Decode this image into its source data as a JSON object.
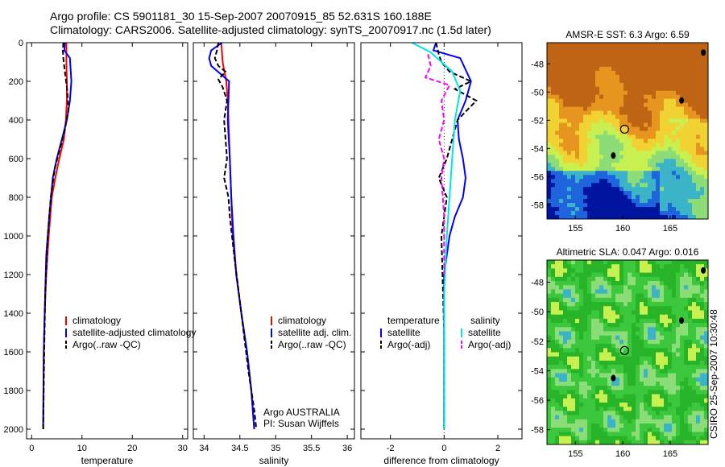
{
  "title": {
    "line1": "Argo profile: CS 5901181_30 15-Sep-2007 20070915_85 52.631S 160.188E",
    "line2": "Climatology: CARS2006. Satellite-adjusted climatology: synTS_20070917.nc (1.5d later)"
  },
  "side_label": "CSIRO 25-Sep-2007 10:30:48",
  "colors": {
    "climatology": "#ff0000",
    "satellite": "#0000ff",
    "argo": "#000000",
    "sat_salinity": "#00e5e5",
    "argo_salinity": "#ff00ff"
  },
  "chart_data": [
    {
      "type": "line",
      "id": "temperature",
      "xlabel": "temperature",
      "xlim": [
        -1,
        31
      ],
      "ylim": [
        2050,
        0
      ],
      "xticks": [
        0,
        10,
        20,
        30
      ],
      "xtick_labels": [
        "0",
        "10",
        "20",
        "30"
      ],
      "yticks": [
        0,
        200,
        400,
        600,
        800,
        1000,
        1200,
        1400,
        1600,
        1800,
        2000
      ],
      "ytick_labels": [
        "0",
        "200",
        "400",
        "600",
        "800",
        "1000",
        "1200",
        "1400",
        "1600",
        "1800",
        "2000"
      ],
      "legend": [
        "climatology",
        "satellite-adjusted climatology",
        "Argo(..raw -QC)"
      ],
      "series": [
        {
          "name": "climatology",
          "color": "#ff0000",
          "dash": "none",
          "x": [
            6.9,
            6.9,
            7.0,
            7.0,
            6.8,
            6.4,
            5.5,
            4.7,
            4.0,
            3.4,
            2.9,
            2.6,
            2.4,
            2.3
          ],
          "y": [
            0,
            100,
            200,
            300,
            400,
            500,
            600,
            700,
            800,
            1000,
            1200,
            1400,
            1600,
            2000
          ]
        },
        {
          "name": "satellite-adjusted climatology",
          "color": "#0000ff",
          "dash": "none",
          "x": [
            6.6,
            6.5,
            7.6,
            7.9,
            7.6,
            7.0,
            6.0,
            5.0,
            4.2,
            3.5,
            2.9,
            2.6,
            2.4,
            2.3
          ],
          "y": [
            0,
            40,
            80,
            200,
            300,
            400,
            500,
            600,
            700,
            900,
            1100,
            1400,
            1600,
            2000
          ]
        },
        {
          "name": "Argo(..raw -QC)",
          "color": "#000000",
          "dash": "6,3",
          "x": [
            6.3,
            6.2,
            6.3,
            6.6,
            7.1,
            7.3,
            6.6,
            5.6,
            4.6,
            3.8,
            3.2,
            2.7,
            2.5,
            2.3
          ],
          "y": [
            0,
            40,
            80,
            150,
            250,
            350,
            450,
            550,
            650,
            800,
            1000,
            1300,
            1600,
            2000
          ]
        }
      ],
      "annotations": []
    },
    {
      "type": "line",
      "id": "salinity",
      "xlabel": "salinity",
      "xlim": [
        33.85,
        36.1
      ],
      "ylim": [
        2050,
        0
      ],
      "xticks": [
        34,
        34.5,
        35,
        35.5,
        36
      ],
      "xtick_labels": [
        "34",
        "34.5",
        "35",
        "35.5",
        "36"
      ],
      "legend": [
        "climatology",
        "satellite adj. clim.",
        "Argo(..raw -QC)"
      ],
      "series": [
        {
          "name": "climatology",
          "color": "#ff0000",
          "dash": "none",
          "x": [
            34.24,
            34.26,
            34.31,
            34.33,
            34.34,
            34.36,
            34.38,
            34.4,
            34.45,
            34.52,
            34.6,
            34.66,
            34.7
          ],
          "y": [
            0,
            100,
            200,
            300,
            400,
            600,
            800,
            1000,
            1200,
            1400,
            1600,
            1800,
            2000
          ]
        },
        {
          "name": "satellite adj. clim.",
          "color": "#0000ff",
          "dash": "none",
          "x": [
            34.25,
            34.1,
            34.07,
            34.1,
            34.35,
            34.34,
            34.33,
            34.36,
            34.38,
            34.41,
            34.45,
            34.52,
            34.6,
            34.66,
            34.7
          ],
          "y": [
            0,
            40,
            80,
            120,
            200,
            300,
            400,
            600,
            800,
            1000,
            1200,
            1400,
            1600,
            1800,
            2000
          ]
        },
        {
          "name": "Argo(..raw -QC)",
          "color": "#000000",
          "dash": "6,3",
          "x": [
            34.2,
            34.18,
            34.15,
            34.2,
            34.3,
            34.2,
            34.26,
            34.32,
            34.28,
            34.3,
            34.32,
            34.28,
            34.34,
            34.36,
            34.42,
            34.52,
            34.62,
            34.7,
            34.73
          ],
          "y": [
            0,
            40,
            80,
            120,
            150,
            190,
            230,
            300,
            400,
            500,
            600,
            700,
            800,
            900,
            1100,
            1400,
            1700,
            1900,
            2000
          ]
        }
      ],
      "annotations": [
        "Argo AUSTRALIA",
        "PI: Susan Wijffels"
      ]
    },
    {
      "type": "line",
      "id": "difference",
      "xlabel": "difference from climatology",
      "xlim": [
        -3.1,
        2.9
      ],
      "ylim": [
        2050,
        0
      ],
      "xticks": [
        -2,
        0,
        2
      ],
      "xtick_labels": [
        "-2",
        "0",
        "2"
      ],
      "legend_groups": [
        "temperature",
        "salinity"
      ],
      "legend": [
        "satellite",
        "Argo(-adj)",
        "satellite",
        "Argo(-adj)"
      ],
      "series": [
        {
          "name": "satellite",
          "group": "temperature",
          "color": "#0000ff",
          "dash": "none",
          "x": [
            -0.3,
            -0.4,
            0.6,
            1.0,
            0.8,
            0.5,
            0.55,
            0.7,
            0.8,
            0.7,
            0.4,
            0.2,
            0.0,
            0.0,
            0.0
          ],
          "y": [
            0,
            40,
            80,
            200,
            300,
            400,
            500,
            600,
            700,
            800,
            900,
            1000,
            1200,
            1600,
            2000
          ]
        },
        {
          "name": "Argo(-adj)",
          "group": "temperature",
          "color": "#000000",
          "dash": "6,3",
          "x": [
            -0.3,
            -0.2,
            -0.1,
            0.2,
            1.0,
            0.4,
            1.2,
            0.5,
            0.3,
            0.1,
            -0.2,
            0.1,
            -0.1,
            0.0,
            0.0
          ],
          "y": [
            0,
            60,
            100,
            150,
            200,
            240,
            300,
            400,
            500,
            600,
            700,
            800,
            1000,
            1500,
            2000
          ]
        },
        {
          "name": "satellite",
          "group": "salinity",
          "color": "#00e5e5",
          "dash": "none",
          "x": [
            -1.2,
            -0.5,
            0.3,
            0.6,
            0.4,
            0.3,
            0.2,
            0.1,
            0.0,
            0.0
          ],
          "y": [
            0,
            50,
            150,
            250,
            400,
            600,
            800,
            1000,
            1300,
            2000
          ]
        },
        {
          "name": "Argo(-adj)",
          "group": "salinity",
          "color": "#ff00ff",
          "dash": "6,3",
          "x": [
            -0.6,
            -0.5,
            -0.7,
            0.2,
            -0.1,
            0.0,
            -0.2,
            0.0,
            -0.1,
            0.0,
            0.0
          ],
          "y": [
            60,
            120,
            180,
            220,
            300,
            400,
            500,
            600,
            700,
            900,
            1200
          ]
        }
      ],
      "annotations": []
    },
    {
      "type": "heatmap",
      "id": "sst-map",
      "title": "AMSR-E SST: 6.3 Argo: 6.59",
      "xlim": [
        152,
        169
      ],
      "ylim": [
        -59,
        -46.5
      ],
      "xticks": [
        155,
        160,
        165
      ],
      "xtick_labels": [
        "155",
        "160",
        "165"
      ],
      "yticks": [
        -48,
        -50,
        -52,
        -54,
        -56,
        -58
      ],
      "ytick_labels": [
        "-48",
        "-50",
        "-52",
        "-54",
        "-56",
        "-58"
      ],
      "marker": {
        "x": 160.188,
        "y": -52.631
      },
      "palette": [
        "#0014a0",
        "#1e64dc",
        "#3cb4c8",
        "#8cdc78",
        "#c8f050",
        "#f0d232",
        "#e6961e",
        "#be6414"
      ]
    },
    {
      "type": "heatmap",
      "id": "sla-map",
      "title": "Altimetric SLA: 0.047 Argo: 0.016",
      "xlim": [
        152,
        169
      ],
      "ylim": [
        -59,
        -46.5
      ],
      "xticks": [
        155,
        160,
        165
      ],
      "xtick_labels": [
        "155",
        "160",
        "165"
      ],
      "yticks": [
        -48,
        -50,
        -52,
        -54,
        -56,
        -58
      ],
      "ytick_labels": [
        "-48",
        "-50",
        "-52",
        "-54",
        "-56",
        "-58"
      ],
      "marker": {
        "x": 160.188,
        "y": -52.631
      },
      "palette": [
        "#1e64dc",
        "#3cb4c8",
        "#8cdc78",
        "#3cc83c",
        "#28b428",
        "#c8f050",
        "#f0b432",
        "#dc6e32"
      ]
    }
  ]
}
